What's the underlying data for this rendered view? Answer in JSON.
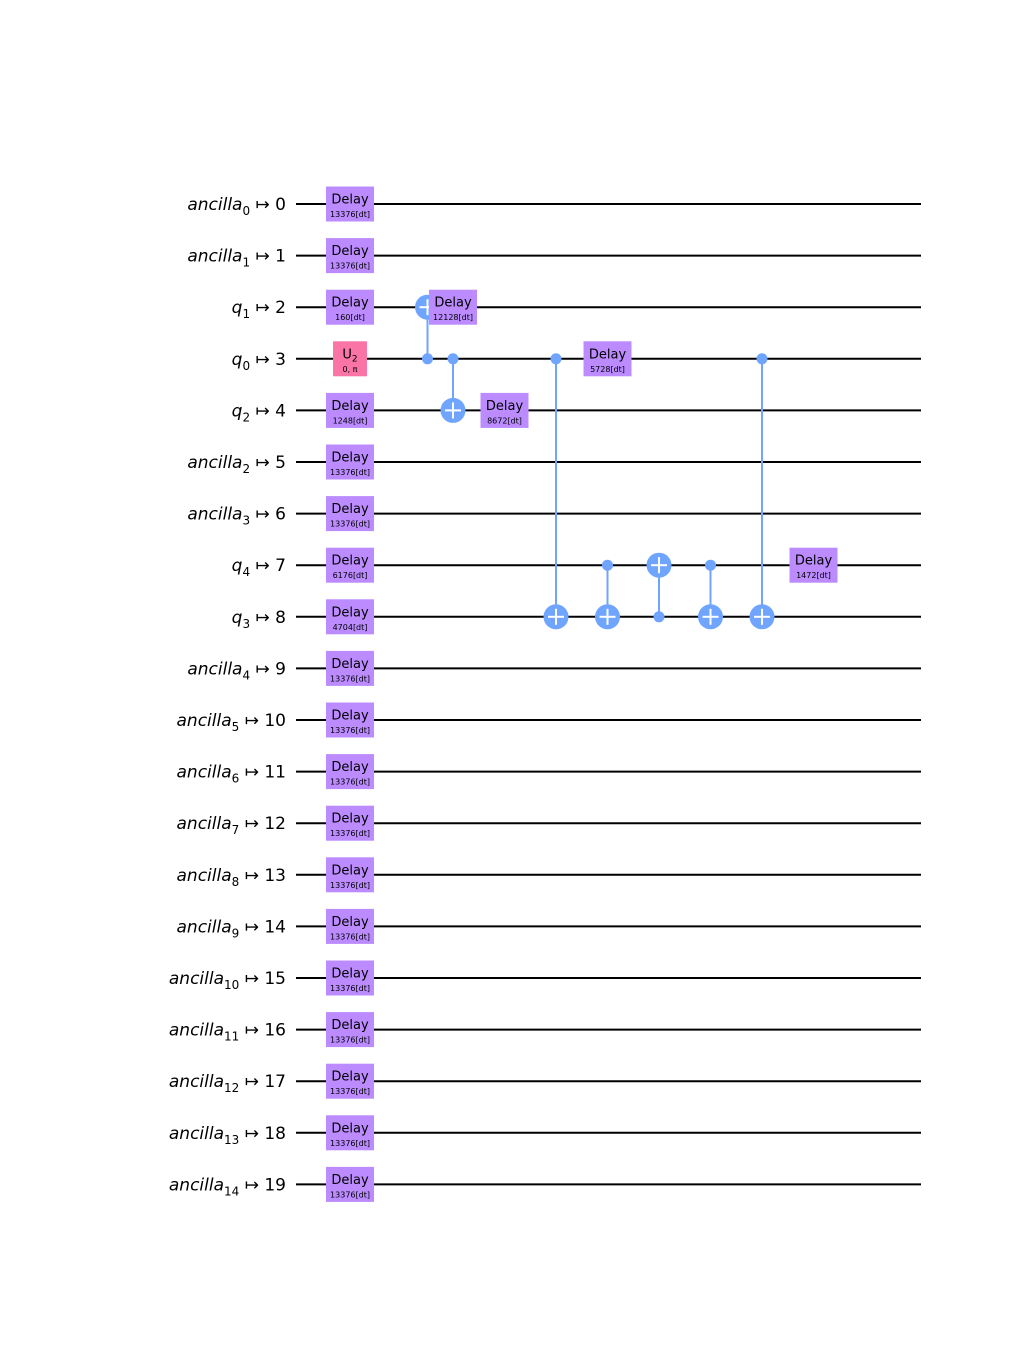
{
  "colors": {
    "wire": "#000000",
    "delay_gate": "#bb8bff",
    "u2_gate": "#fa74a6",
    "cx": "#6fa4ff"
  },
  "arrow": "↦",
  "wires": [
    {
      "reg": "ancilla",
      "sub": "0",
      "idx": "0"
    },
    {
      "reg": "ancilla",
      "sub": "1",
      "idx": "1"
    },
    {
      "reg": "q",
      "sub": "1",
      "idx": "2"
    },
    {
      "reg": "q",
      "sub": "0",
      "idx": "3"
    },
    {
      "reg": "q",
      "sub": "2",
      "idx": "4"
    },
    {
      "reg": "ancilla",
      "sub": "2",
      "idx": "5"
    },
    {
      "reg": "ancilla",
      "sub": "3",
      "idx": "6"
    },
    {
      "reg": "q",
      "sub": "4",
      "idx": "7"
    },
    {
      "reg": "q",
      "sub": "3",
      "idx": "8"
    },
    {
      "reg": "ancilla",
      "sub": "4",
      "idx": "9"
    },
    {
      "reg": "ancilla",
      "sub": "5",
      "idx": "10"
    },
    {
      "reg": "ancilla",
      "sub": "6",
      "idx": "11"
    },
    {
      "reg": "ancilla",
      "sub": "7",
      "idx": "12"
    },
    {
      "reg": "ancilla",
      "sub": "8",
      "idx": "13"
    },
    {
      "reg": "ancilla",
      "sub": "9",
      "idx": "14"
    },
    {
      "reg": "ancilla",
      "sub": "10",
      "idx": "15"
    },
    {
      "reg": "ancilla",
      "sub": "11",
      "idx": "16"
    },
    {
      "reg": "ancilla",
      "sub": "12",
      "idx": "17"
    },
    {
      "reg": "ancilla",
      "sub": "13",
      "idx": "18"
    },
    {
      "reg": "ancilla",
      "sub": "14",
      "idx": "19"
    }
  ],
  "gates": [
    {
      "type": "delay",
      "wire": 0,
      "col": 0,
      "label": "Delay",
      "param": "13376[dt]"
    },
    {
      "type": "delay",
      "wire": 1,
      "col": 0,
      "label": "Delay",
      "param": "13376[dt]"
    },
    {
      "type": "delay",
      "wire": 2,
      "col": 0,
      "label": "Delay",
      "param": "160[dt]"
    },
    {
      "type": "u2",
      "wire": 3,
      "col": 0,
      "label": "U",
      "label_sub": "2",
      "param": "0, π"
    },
    {
      "type": "delay",
      "wire": 4,
      "col": 0,
      "label": "Delay",
      "param": "1248[dt]"
    },
    {
      "type": "delay",
      "wire": 5,
      "col": 0,
      "label": "Delay",
      "param": "13376[dt]"
    },
    {
      "type": "delay",
      "wire": 6,
      "col": 0,
      "label": "Delay",
      "param": "13376[dt]"
    },
    {
      "type": "delay",
      "wire": 7,
      "col": 0,
      "label": "Delay",
      "param": "6176[dt]"
    },
    {
      "type": "delay",
      "wire": 8,
      "col": 0,
      "label": "Delay",
      "param": "4704[dt]"
    },
    {
      "type": "delay",
      "wire": 9,
      "col": 0,
      "label": "Delay",
      "param": "13376[dt]"
    },
    {
      "type": "delay",
      "wire": 10,
      "col": 0,
      "label": "Delay",
      "param": "13376[dt]"
    },
    {
      "type": "delay",
      "wire": 11,
      "col": 0,
      "label": "Delay",
      "param": "13376[dt]"
    },
    {
      "type": "delay",
      "wire": 12,
      "col": 0,
      "label": "Delay",
      "param": "13376[dt]"
    },
    {
      "type": "delay",
      "wire": 13,
      "col": 0,
      "label": "Delay",
      "param": "13376[dt]"
    },
    {
      "type": "delay",
      "wire": 14,
      "col": 0,
      "label": "Delay",
      "param": "13376[dt]"
    },
    {
      "type": "delay",
      "wire": 15,
      "col": 0,
      "label": "Delay",
      "param": "13376[dt]"
    },
    {
      "type": "delay",
      "wire": 16,
      "col": 0,
      "label": "Delay",
      "param": "13376[dt]"
    },
    {
      "type": "delay",
      "wire": 17,
      "col": 0,
      "label": "Delay",
      "param": "13376[dt]"
    },
    {
      "type": "delay",
      "wire": 18,
      "col": 0,
      "label": "Delay",
      "param": "13376[dt]"
    },
    {
      "type": "delay",
      "wire": 19,
      "col": 0,
      "label": "Delay",
      "param": "13376[dt]"
    },
    {
      "type": "cx",
      "col": 1,
      "control": 3,
      "target": 2
    },
    {
      "type": "delay",
      "wire": 2,
      "col": 2,
      "label": "Delay",
      "param": "12128[dt]"
    },
    {
      "type": "cx",
      "col": 2,
      "control": 3,
      "target": 4
    },
    {
      "type": "delay",
      "wire": 4,
      "col": 3,
      "label": "Delay",
      "param": "8672[dt]"
    },
    {
      "type": "cx",
      "col": 4,
      "control": 3,
      "target": 8
    },
    {
      "type": "delay",
      "wire": 3,
      "col": 5,
      "label": "Delay",
      "param": "5728[dt]"
    },
    {
      "type": "cx",
      "col": 5,
      "control": 7,
      "target": 8
    },
    {
      "type": "cx",
      "col": 6,
      "control": 8,
      "target": 7
    },
    {
      "type": "cx",
      "col": 7,
      "control": 7,
      "target": 8
    },
    {
      "type": "cx",
      "col": 8,
      "control": 3,
      "target": 8
    },
    {
      "type": "delay",
      "wire": 7,
      "col": 9,
      "label": "Delay",
      "param": "1472[dt]"
    }
  ]
}
